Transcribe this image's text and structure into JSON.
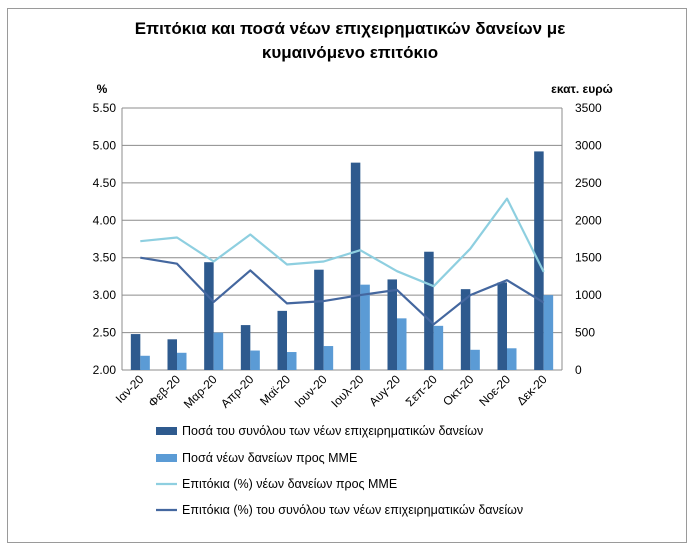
{
  "chart_data": {
    "type": "bar+line",
    "title_line1": "Επιτόκια και ποσά νέων επιχειρηματικών δανείων με",
    "title_line2": "κυμαινόμενο επιτόκιο",
    "ylabel_left": "%",
    "ylabel_right": "εκατ. ευρώ",
    "ylim_left": [
      2.0,
      5.5
    ],
    "ylim_right": [
      0,
      3500
    ],
    "yticks_left": [
      "2.00",
      "2.50",
      "3.00",
      "3.50",
      "4.00",
      "4.50",
      "5.00",
      "5.50"
    ],
    "yticks_right": [
      "0",
      "500",
      "1000",
      "1500",
      "2000",
      "2500",
      "3000",
      "3500"
    ],
    "categories": [
      "Ιαν-20",
      "Φεβ-20",
      "Μαρ-20",
      "Απρ-20",
      "Μαϊ-20",
      "Ιουν-20",
      "Ιουλ-20",
      "Αυγ-20",
      "Σεπ-20",
      "Οκτ-20",
      "Νοε-20",
      "Δεκ-20"
    ],
    "grid": "horizontal",
    "legend_position": "bottom",
    "series": [
      {
        "name": "Ποσά του συνόλου των νέων επιχειρηματικών δανείων",
        "kind": "bar",
        "axis": "right",
        "color": "#2e5a8e",
        "values": [
          480,
          410,
          1440,
          600,
          790,
          1340,
          2770,
          1210,
          1580,
          1080,
          1170,
          2920
        ]
      },
      {
        "name": "Ποσά νέων δανείων προς ΜΜΕ",
        "kind": "bar",
        "axis": "right",
        "color": "#5b9bd5",
        "values": [
          190,
          230,
          500,
          260,
          240,
          320,
          1140,
          690,
          590,
          270,
          290,
          1000
        ]
      },
      {
        "name": "Επιτόκια (%) νέων δανείων προς ΜΜΕ",
        "kind": "line",
        "axis": "left",
        "color": "#8ecfe0",
        "values": [
          3.72,
          3.77,
          3.45,
          3.81,
          3.41,
          3.45,
          3.6,
          3.32,
          3.12,
          3.62,
          4.29,
          3.31
        ]
      },
      {
        "name": "Επιτόκια (%) του συνόλου των νέων επιχειρηματικών δανείων",
        "kind": "line",
        "axis": "left",
        "color": "#44679f",
        "values": [
          3.5,
          3.42,
          2.91,
          3.33,
          2.89,
          2.92,
          3.0,
          3.07,
          2.61,
          3.0,
          3.2,
          2.9
        ]
      }
    ]
  }
}
